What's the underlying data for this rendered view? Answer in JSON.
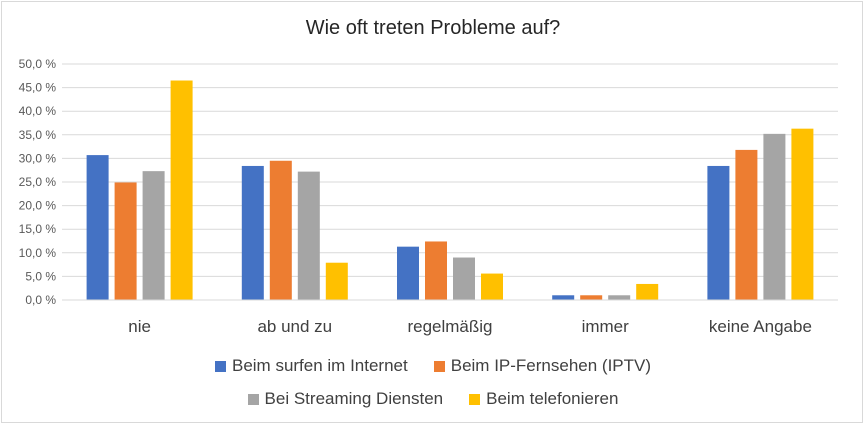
{
  "chart_data": {
    "type": "bar",
    "title": "Wie oft treten Probleme auf?",
    "categories": [
      "nie",
      "ab und zu",
      "regelmäßig",
      "immer",
      "keine Angabe"
    ],
    "series": [
      {
        "name": "Beim surfen im Internet",
        "color": "#4472c4",
        "values": [
          30.7,
          28.4,
          11.3,
          1.0,
          28.4
        ]
      },
      {
        "name": "Beim IP-Fernsehen (IPTV)",
        "color": "#ed7d31",
        "values": [
          24.9,
          29.5,
          12.4,
          1.0,
          31.8
        ]
      },
      {
        "name": "Bei Streaming Diensten",
        "color": "#a5a5a5",
        "values": [
          27.3,
          27.2,
          9.0,
          1.0,
          35.2
        ]
      },
      {
        "name": "Beim telefonieren",
        "color": "#ffc000",
        "values": [
          46.5,
          7.9,
          5.6,
          3.4,
          36.3
        ]
      }
    ],
    "ylim": [
      0,
      50
    ],
    "yticks": [
      "0,0 %",
      "5,0 %",
      "10,0 %",
      "15,0 %",
      "20,0 %",
      "25,0 %",
      "30,0 %",
      "35,0 %",
      "40,0 %",
      "45,0 %",
      "50,0 %"
    ],
    "xlabel": "",
    "ylabel": "",
    "legend_position": "bottom"
  }
}
